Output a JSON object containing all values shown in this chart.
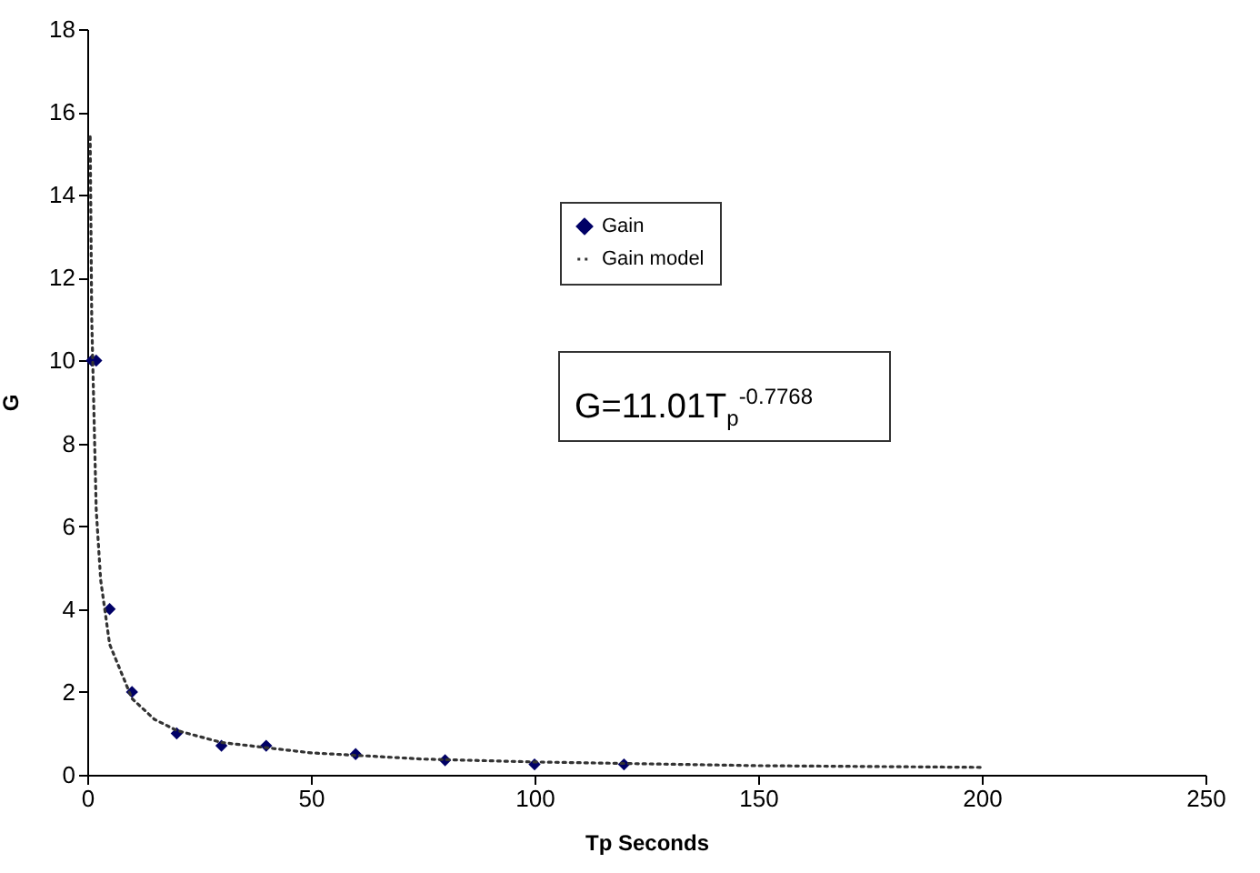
{
  "chart_data": {
    "type": "scatter",
    "xlabel": "Tp Seconds",
    "ylabel": "G",
    "xlim": [
      0,
      250
    ],
    "xticks": [
      0,
      50,
      100,
      150,
      200,
      250
    ],
    "ylim": [
      0,
      18
    ],
    "yticks": [
      0,
      2,
      4,
      6,
      8,
      10,
      12,
      14,
      16,
      18
    ],
    "grid": false,
    "legend": "top",
    "annotations": [
      "G=11.01T$_{p}$$^{-0.7768}$"
    ],
    "series": [
      {
        "name": "Gain",
        "marker": "diamond",
        "color": "#000066",
        "x": [
          1,
          2,
          5,
          10,
          20,
          30,
          40,
          60,
          80,
          100,
          120
        ],
        "values": [
          10,
          10,
          4,
          2,
          1,
          0.7,
          0.7,
          0.5,
          0.35,
          0.25,
          0.25
        ]
      },
      {
        "name": "Gain model",
        "type": "line",
        "line_style": "dotted",
        "color": "#333333",
        "x": [
          0.65,
          1,
          2,
          3,
          5,
          10,
          15,
          20,
          30,
          50,
          75,
          100,
          150,
          200
        ],
        "values": [
          15.4,
          11.0,
          6.4,
          4.7,
          3.15,
          1.84,
          1.34,
          1.07,
          0.78,
          0.53,
          0.38,
          0.31,
          0.22,
          0.18
        ]
      }
    ]
  }
}
